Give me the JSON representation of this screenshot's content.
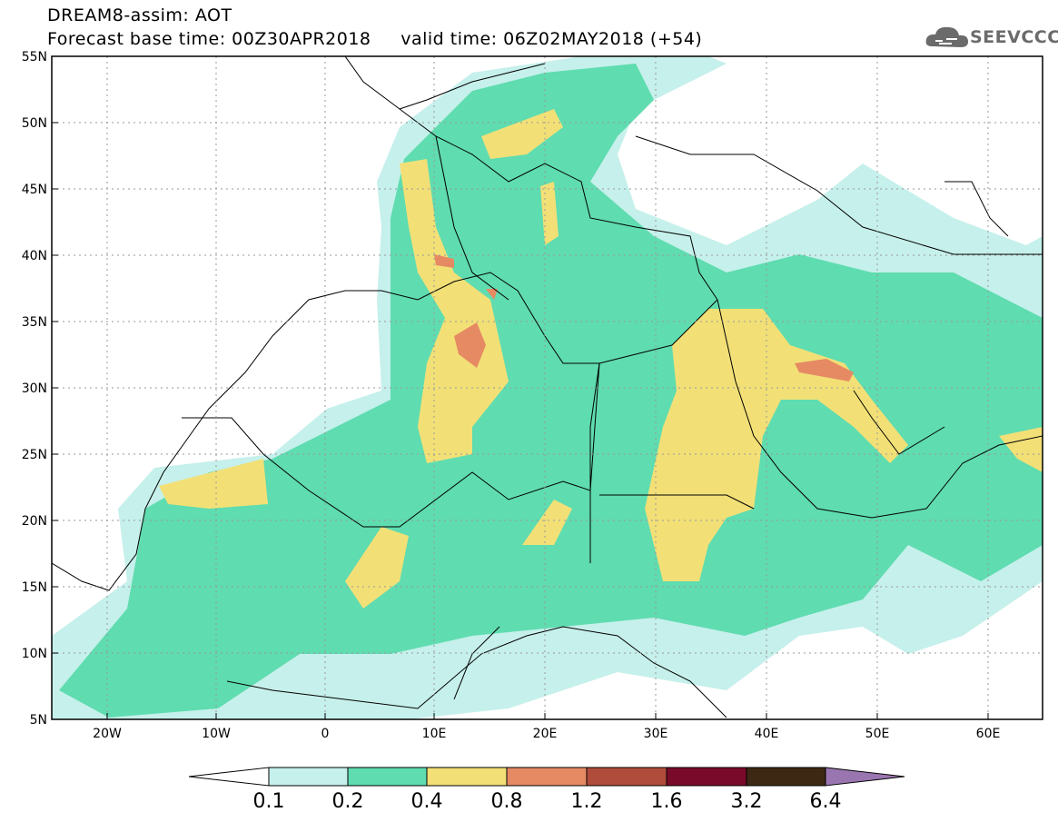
{
  "header": {
    "title_line1": "DREAM8-assim: AOT",
    "title_line2": "Forecast base time: 00Z30APR2018     valid time: 06Z02MAY2018 (+54)",
    "logo_text": "SEEVCCC",
    "logo_icon": "cloud-icon"
  },
  "map": {
    "lat_labels": [
      "55N",
      "50N",
      "45N",
      "40N",
      "35N",
      "30N",
      "25N",
      "20N",
      "15N",
      "10N",
      "5N"
    ],
    "lon_labels": [
      "20W",
      "10W",
      "0",
      "10E",
      "20E",
      "30E",
      "40E",
      "50E",
      "60E"
    ],
    "colors": {
      "c1": "#c6f0eb",
      "c2": "#5fdcb0",
      "c3": "#f2e077",
      "c4": "#e68a64",
      "c5": "#b04c3c",
      "c6": "#7a0a2a",
      "c7": "#3d2814",
      "c8": "#9a76b0"
    }
  },
  "colorbar": {
    "labels": [
      "0.1",
      "0.2",
      "0.4",
      "0.8",
      "1.2",
      "1.6",
      "3.2",
      "6.4"
    ]
  }
}
